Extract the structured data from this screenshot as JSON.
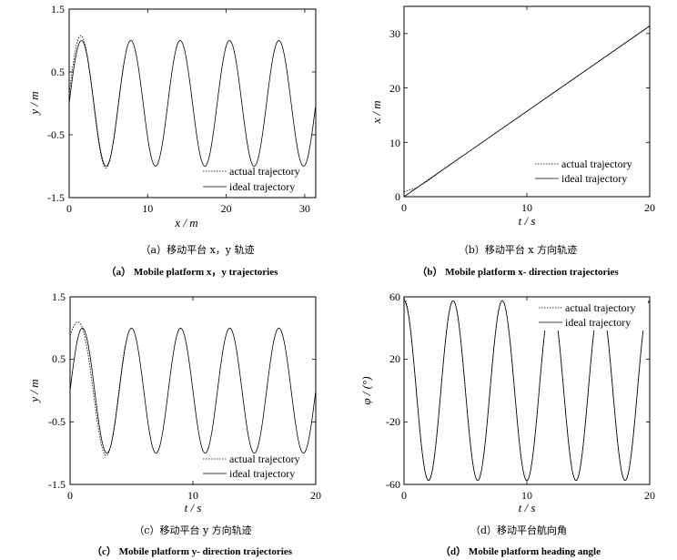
{
  "chart_data": [
    {
      "type": "line",
      "title": "",
      "xlabel": "x / m",
      "ylabel": "y / m",
      "xlim": [
        0,
        31.4
      ],
      "ylim": [
        -1.5,
        1.5
      ],
      "xticks": [
        "0",
        "10",
        "20",
        "30"
      ],
      "xtick_values": [
        0,
        10,
        20,
        30
      ],
      "yticks": [
        "1.5",
        "0.5",
        "-0.5",
        "-1.5"
      ],
      "ytick_values": [
        1.5,
        0.5,
        -0.5,
        -1.5
      ],
      "legend": "bottom-right",
      "series": [
        {
          "name": "actual trajectory",
          "style": "dotted",
          "description": "y = sin(x) with a small overshoot near x from 0 to 6; otherwise overlaps the ideal curve"
        },
        {
          "name": "ideal trajectory",
          "style": "solid",
          "description": "y = sin(x), x from 0 to 31.4"
        }
      ],
      "caption_cn": "（a）移动平台 x，y 轨迹",
      "caption_en": "（a） Mobile platform x，y trajectories"
    },
    {
      "type": "line",
      "title": "",
      "xlabel": "t / s",
      "ylabel": "x / m",
      "xlim": [
        0,
        20
      ],
      "ylim": [
        0,
        35
      ],
      "xticks": [
        "0",
        "10",
        "20"
      ],
      "xtick_values": [
        0,
        10,
        20
      ],
      "yticks": [
        "0",
        "10",
        "20",
        "30"
      ],
      "ytick_values": [
        0,
        10,
        20,
        30
      ],
      "legend": "bottom-right",
      "series": [
        {
          "name": "actual trajectory",
          "style": "dotted",
          "x": [
            0,
            1,
            2,
            3,
            20
          ],
          "y": [
            0.9,
            1.6,
            3.0,
            4.7,
            31.4
          ]
        },
        {
          "name": "ideal trajectory",
          "style": "solid",
          "x": [
            0,
            20
          ],
          "y": [
            0,
            31.4
          ]
        }
      ],
      "caption_cn": "（b）移动平台 x 方向轨迹",
      "caption_en": "（b） Mobile platform x- direction trajectories"
    },
    {
      "type": "line",
      "title": "",
      "xlabel": "t / s",
      "ylabel": "y / m",
      "xlim": [
        0,
        20
      ],
      "ylim": [
        -1.5,
        1.5
      ],
      "xticks": [
        "0",
        "10",
        "20"
      ],
      "xtick_values": [
        0,
        10,
        20
      ],
      "yticks": [
        "1.5",
        "0.5",
        "-0.5",
        "-1.5"
      ],
      "ytick_values": [
        1.5,
        0.5,
        -0.5,
        -1.5
      ],
      "legend": "bottom-right",
      "series": [
        {
          "name": "actual trajectory",
          "style": "dotted",
          "description": "y = sin(1.57 t), starts at 1.0 with an overshoot to about 1.13 and -1.1 near t from 0 to 4; otherwise overlaps the ideal curve"
        },
        {
          "name": "ideal trajectory",
          "style": "solid",
          "description": "y = sin(1.57 t), t from 0 to 20 (5 periods)"
        }
      ],
      "caption_cn": "（c）移动平台 y 方向轨迹",
      "caption_en": "（c） Mobile platform y- direction trajectories"
    },
    {
      "type": "line",
      "title": "",
      "xlabel": "t / s",
      "ylabel": "φ / (°)",
      "xlim": [
        0,
        20
      ],
      "ylim": [
        -60,
        60
      ],
      "xticks": [
        "0",
        "10",
        "20"
      ],
      "xtick_values": [
        0,
        10,
        20
      ],
      "yticks": [
        "60",
        "20",
        "-20",
        "-60"
      ],
      "ytick_values": [
        60,
        20,
        -20,
        -60
      ],
      "legend": "top-right",
      "series": [
        {
          "name": "actual trajectory",
          "style": "dotted",
          "description": "overlaps the ideal heading curve"
        },
        {
          "name": "ideal trajectory",
          "style": "solid",
          "description": "φ = 57.5 cos(1.57 t), t from 0 to 20, amplitude about 57.5"
        }
      ],
      "caption_cn": "（d）移动平台航向角",
      "caption_en": "（d） Mobile platform heading angle"
    }
  ]
}
